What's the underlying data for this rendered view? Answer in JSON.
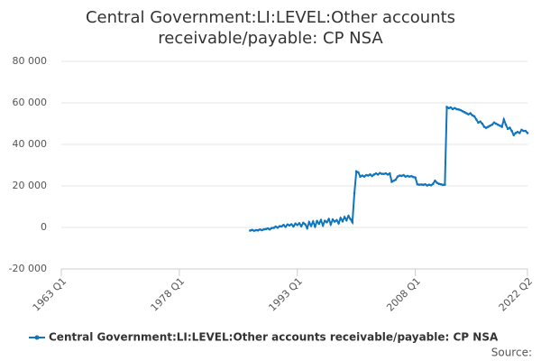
{
  "chart_data": {
    "type": "line",
    "title": "Central Government:LI:LEVEL:Other accounts receivable/payable: CP NSA",
    "source": "Source:",
    "grid": true,
    "xlim": [
      1963,
      2022.25
    ],
    "xticks": [
      {
        "value": 1963,
        "label": "1963 Q1"
      },
      {
        "value": 1978,
        "label": "1978 Q1"
      },
      {
        "value": 1993,
        "label": "1993 Q1"
      },
      {
        "value": 2008,
        "label": "2008 Q1"
      },
      {
        "value": 2022.25,
        "label": "2022 Q2"
      }
    ],
    "ylim": [
      -20000,
      80000
    ],
    "yticks": [
      {
        "value": -20000,
        "label": "-20 000"
      },
      0,
      {
        "value": 20000,
        "label": "20 000"
      },
      {
        "value": 40000,
        "label": "40 000"
      },
      {
        "value": 60000,
        "label": "60 000"
      },
      {
        "value": 80000,
        "label": "80 000"
      }
    ],
    "series": [
      {
        "name": "Central Government:LI:LEVEL:Other accounts receivable/payable: CP NSA",
        "color": "#0f75bc",
        "x": [
          1987,
          1987.25,
          1987.5,
          1987.75,
          1988,
          1988.25,
          1988.5,
          1988.75,
          1989,
          1989.25,
          1989.5,
          1989.75,
          1990,
          1990.25,
          1990.5,
          1990.75,
          1991,
          1991.25,
          1991.5,
          1991.75,
          1992,
          1992.25,
          1992.5,
          1992.75,
          1993,
          1993.25,
          1993.5,
          1993.75,
          1994,
          1994.25,
          1994.5,
          1994.75,
          1995,
          1995.25,
          1995.5,
          1995.75,
          1996,
          1996.25,
          1996.5,
          1996.75,
          1997,
          1997.25,
          1997.5,
          1997.75,
          1998,
          1998.25,
          1998.5,
          1998.75,
          1999,
          1999.25,
          1999.5,
          1999.75,
          2000,
          2000.25,
          2000.5,
          2000.75,
          2001,
          2001.25,
          2001.5,
          2001.75,
          2002,
          2002.25,
          2002.5,
          2002.75,
          2003,
          2003.25,
          2003.5,
          2003.75,
          2004,
          2004.25,
          2004.5,
          2004.75,
          2005,
          2005.25,
          2005.5,
          2005.75,
          2006,
          2006.25,
          2006.5,
          2006.75,
          2007,
          2007.25,
          2007.5,
          2007.75,
          2008,
          2008.25,
          2008.5,
          2008.75,
          2009,
          2009.25,
          2009.5,
          2009.75,
          2010,
          2010.25,
          2010.5,
          2010.75,
          2011,
          2011.25,
          2011.5,
          2011.75,
          2012,
          2012.25,
          2012.5,
          2012.75,
          2013,
          2013.25,
          2013.5,
          2013.75,
          2014,
          2014.25,
          2014.5,
          2014.75,
          2015,
          2015.25,
          2015.5,
          2015.75,
          2016,
          2016.25,
          2016.5,
          2016.75,
          2017,
          2017.25,
          2017.5,
          2017.75,
          2018,
          2018.25,
          2018.5,
          2018.75,
          2019,
          2019.25,
          2019.5,
          2019.75,
          2020,
          2020.25,
          2020.5,
          2020.75,
          2021,
          2021.25,
          2021.5,
          2021.75,
          2022,
          2022.25
        ],
        "values": [
          -1500,
          -1200,
          -1600,
          -1300,
          -1400,
          -1000,
          -1300,
          -900,
          -800,
          -500,
          -900,
          -300,
          -200,
          400,
          -100,
          600,
          500,
          1200,
          300,
          1400,
          1000,
          1500,
          500,
          1800,
          1200,
          2000,
          600,
          2200,
          1500,
          -300,
          2500,
          800,
          2800,
          500,
          3000,
          1800,
          3500,
          1000,
          3200,
          2500,
          4000,
          1500,
          3800,
          2800,
          3500,
          2000,
          4500,
          3000,
          5000,
          3500,
          5500,
          4000,
          2500,
          16500,
          27000,
          26500,
          24500,
          25000,
          24500,
          25200,
          25000,
          25500,
          24800,
          25500,
          26000,
          25500,
          26200,
          25800,
          25800,
          26000,
          25500,
          26000,
          22000,
          22500,
          23000,
          24500,
          25000,
          24800,
          25200,
          24500,
          24800,
          24500,
          24700,
          24300,
          24000,
          20800,
          20600,
          20700,
          20500,
          20800,
          20200,
          20600,
          20300,
          21000,
          22500,
          21500,
          21000,
          20800,
          20500,
          20600,
          58000,
          57500,
          57800,
          57000,
          57500,
          57000,
          56800,
          56500,
          56000,
          55500,
          55000,
          54500,
          55000,
          54000,
          53500,
          52000,
          50500,
          51000,
          50000,
          48500,
          48000,
          48500,
          49000,
          49500,
          50500,
          50000,
          49500,
          49000,
          48500,
          52000,
          49500,
          47500,
          48000,
          46500,
          44500,
          45500,
          46000,
          45500,
          47000,
          46500,
          46500,
          45500
        ]
      }
    ]
  }
}
